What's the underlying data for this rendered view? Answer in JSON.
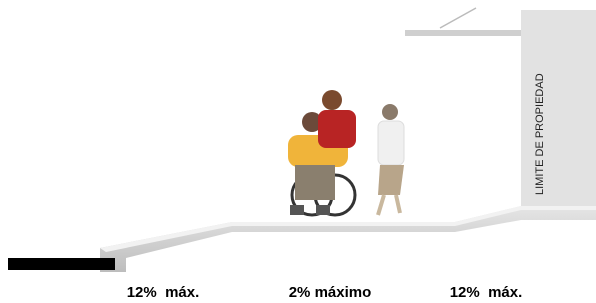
{
  "property_label": "LIMITE DE PROPIEDAD",
  "slope_labels": [
    "12%  máx.",
    "2% máximo",
    "12%  máx."
  ]
}
